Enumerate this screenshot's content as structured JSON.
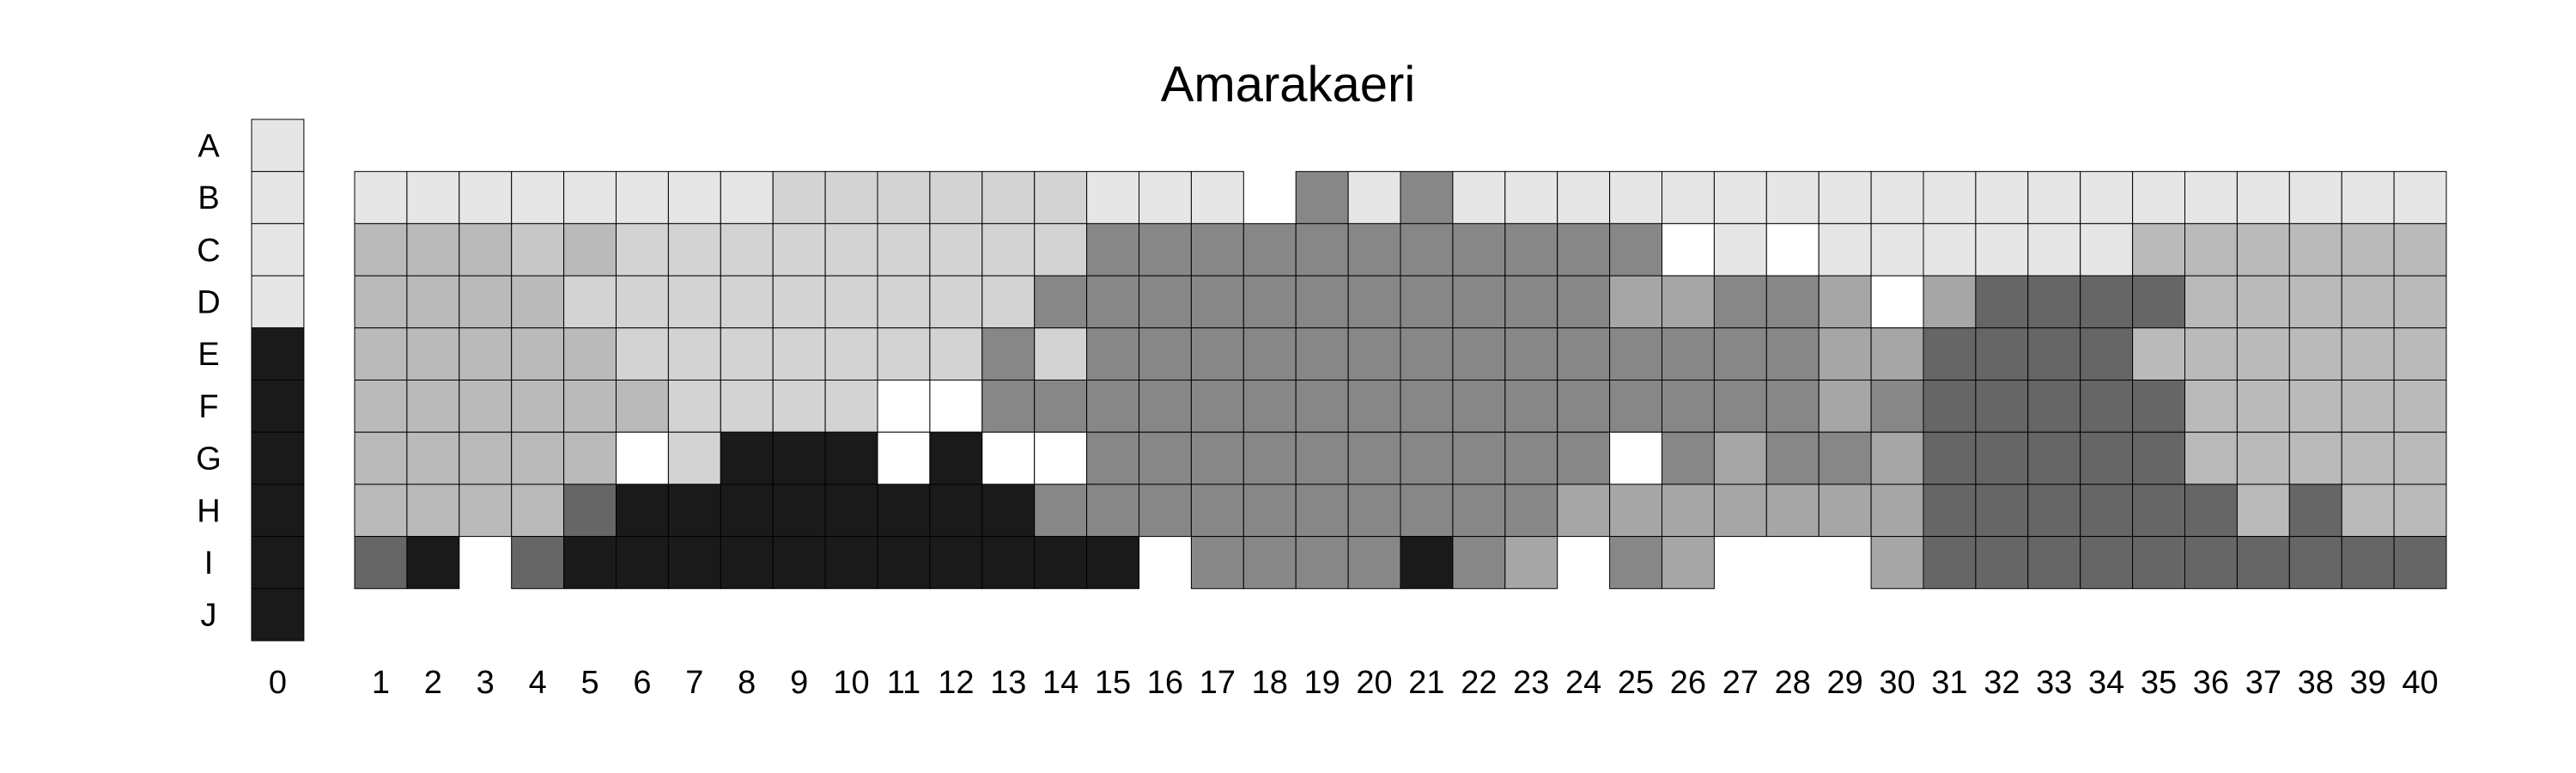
{
  "chart_data": {
    "type": "heatmap",
    "title": "Amarakaeri",
    "xlabel": "",
    "ylabel": "",
    "rows": [
      "A",
      "B",
      "C",
      "D",
      "E",
      "F",
      "G",
      "H",
      "I",
      "J"
    ],
    "columns": [
      "0",
      "1",
      "2",
      "3",
      "4",
      "5",
      "6",
      "7",
      "8",
      "9",
      "10",
      "11",
      "12",
      "13",
      "14",
      "15",
      "16",
      "17",
      "18",
      "19",
      "20",
      "21",
      "22",
      "23",
      "24",
      "25",
      "26",
      "27",
      "28",
      "29",
      "30",
      "31",
      "32",
      "33",
      "34",
      "35",
      "36",
      "37",
      "38",
      "39",
      "40"
    ],
    "reference_column": {
      "label": "0",
      "values": [
        "#e6e6e6",
        "#e6e6e6",
        "#e6e6e6",
        "#e6e6e6",
        "#1a1a1a",
        "#1a1a1a",
        "#1a1a1a",
        "#1a1a1a",
        "#1a1a1a",
        "#1a1a1a"
      ]
    },
    "grid": {
      "B": [
        "#e6e6e6",
        "#e6e6e6",
        "#e6e6e6",
        "#e6e6e6",
        "#e6e6e6",
        "#e6e6e6",
        "#e6e6e6",
        "#e6e6e6",
        "#d3d3d3",
        "#d3d3d3",
        "#d3d3d3",
        "#d3d3d3",
        "#d3d3d3",
        "#d3d3d3",
        "#e6e6e6",
        "#e6e6e6",
        "#e6e6e6",
        null,
        "#878787",
        "#e6e6e6",
        "#878787",
        "#e6e6e6",
        "#e6e6e6",
        "#e6e6e6",
        "#e6e6e6",
        "#e6e6e6",
        "#e6e6e6",
        "#e6e6e6",
        "#e6e6e6",
        "#e6e6e6",
        "#e6e6e6",
        "#e6e6e6",
        "#e6e6e6",
        "#e6e6e6",
        "#e6e6e6",
        "#e6e6e6",
        "#e6e6e6",
        "#e6e6e6",
        "#e6e6e6",
        "#e6e6e6"
      ],
      "C": [
        "#bababa",
        "#bababa",
        "#bababa",
        "#c8c8c8",
        "#bababa",
        "#d3d3d3",
        "#d3d3d3",
        "#d3d3d3",
        "#d3d3d3",
        "#d3d3d3",
        "#d3d3d3",
        "#d3d3d3",
        "#d3d3d3",
        "#d3d3d3",
        "#878787",
        "#878787",
        "#878787",
        "#878787",
        "#878787",
        "#878787",
        "#878787",
        "#878787",
        "#878787",
        "#878787",
        "#878787",
        "#ffffff",
        "#e6e6e6",
        "#ffffff",
        "#e6e6e6",
        "#e6e6e6",
        "#e6e6e6",
        "#e6e6e6",
        "#e6e6e6",
        "#e6e6e6",
        "#bababa",
        "#bababa",
        "#bababa",
        "#bababa",
        "#bababa",
        "#bababa"
      ],
      "D": [
        "#bababa",
        "#bababa",
        "#bababa",
        "#bababa",
        "#d3d3d3",
        "#d3d3d3",
        "#d3d3d3",
        "#d3d3d3",
        "#d3d3d3",
        "#d3d3d3",
        "#d3d3d3",
        "#d3d3d3",
        "#d3d3d3",
        "#878787",
        "#878787",
        "#878787",
        "#878787",
        "#878787",
        "#878787",
        "#878787",
        "#878787",
        "#878787",
        "#878787",
        "#878787",
        "#a6a6a6",
        "#a6a6a6",
        "#878787",
        "#878787",
        "#a6a6a6",
        "#ffffff",
        "#a6a6a6",
        "#666666",
        "#666666",
        "#666666",
        "#666666",
        "#bababa",
        "#bababa",
        "#bababa",
        "#bababa",
        "#bababa"
      ],
      "E": [
        "#bababa",
        "#bababa",
        "#bababa",
        "#bababa",
        "#bababa",
        "#d3d3d3",
        "#d3d3d3",
        "#d3d3d3",
        "#d3d3d3",
        "#d3d3d3",
        "#d3d3d3",
        "#d3d3d3",
        "#878787",
        "#d3d3d3",
        "#878787",
        "#878787",
        "#878787",
        "#878787",
        "#878787",
        "#878787",
        "#878787",
        "#878787",
        "#878787",
        "#878787",
        "#878787",
        "#878787",
        "#878787",
        "#878787",
        "#a6a6a6",
        "#a6a6a6",
        "#666666",
        "#666666",
        "#666666",
        "#666666",
        "#bababa",
        "#bababa",
        "#bababa",
        "#bababa",
        "#bababa",
        "#bababa"
      ],
      "F": [
        "#bababa",
        "#bababa",
        "#bababa",
        "#bababa",
        "#bababa",
        "#bababa",
        "#d3d3d3",
        "#d3d3d3",
        "#d3d3d3",
        "#d3d3d3",
        "#ffffff",
        "#ffffff",
        "#878787",
        "#878787",
        "#878787",
        "#878787",
        "#878787",
        "#878787",
        "#878787",
        "#878787",
        "#878787",
        "#878787",
        "#878787",
        "#878787",
        "#878787",
        "#878787",
        "#878787",
        "#878787",
        "#a6a6a6",
        "#878787",
        "#666666",
        "#666666",
        "#666666",
        "#666666",
        "#666666",
        "#bababa",
        "#bababa",
        "#bababa",
        "#bababa",
        "#bababa"
      ],
      "G": [
        "#bababa",
        "#bababa",
        "#bababa",
        "#bababa",
        "#bababa",
        "#ffffff",
        "#d3d3d3",
        "#1a1a1a",
        "#1a1a1a",
        "#1a1a1a",
        "#ffffff",
        "#1a1a1a",
        "#ffffff",
        "#ffffff",
        "#878787",
        "#878787",
        "#878787",
        "#878787",
        "#878787",
        "#878787",
        "#878787",
        "#878787",
        "#878787",
        "#878787",
        "#ffffff",
        "#878787",
        "#a6a6a6",
        "#878787",
        "#878787",
        "#a6a6a6",
        "#666666",
        "#666666",
        "#666666",
        "#666666",
        "#666666",
        "#bababa",
        "#bababa",
        "#bababa",
        "#bababa",
        "#bababa"
      ],
      "H": [
        "#bababa",
        "#bababa",
        "#bababa",
        "#bababa",
        "#666666",
        "#1a1a1a",
        "#1a1a1a",
        "#1a1a1a",
        "#1a1a1a",
        "#1a1a1a",
        "#1a1a1a",
        "#1a1a1a",
        "#1a1a1a",
        "#878787",
        "#878787",
        "#878787",
        "#878787",
        "#878787",
        "#878787",
        "#878787",
        "#878787",
        "#878787",
        "#878787",
        "#a6a6a6",
        "#a6a6a6",
        "#a6a6a6",
        "#a6a6a6",
        "#a6a6a6",
        "#a6a6a6",
        "#a6a6a6",
        "#666666",
        "#666666",
        "#666666",
        "#666666",
        "#666666",
        "#666666",
        "#bababa",
        "#666666",
        "#bababa",
        "#bababa"
      ],
      "I": [
        "#666666",
        "#1a1a1a",
        null,
        "#666666",
        "#1a1a1a",
        "#1a1a1a",
        "#1a1a1a",
        "#1a1a1a",
        "#1a1a1a",
        "#1a1a1a",
        "#1a1a1a",
        "#1a1a1a",
        "#1a1a1a",
        "#1a1a1a",
        "#1a1a1a",
        null,
        "#878787",
        "#878787",
        "#878787",
        "#878787",
        "#1a1a1a",
        "#878787",
        "#a6a6a6",
        null,
        "#878787",
        "#a6a6a6",
        null,
        null,
        null,
        "#a6a6a6",
        "#666666",
        "#666666",
        "#666666",
        "#666666",
        "#666666",
        "#666666",
        "#666666",
        "#666666",
        "#666666",
        "#666666"
      ]
    }
  }
}
